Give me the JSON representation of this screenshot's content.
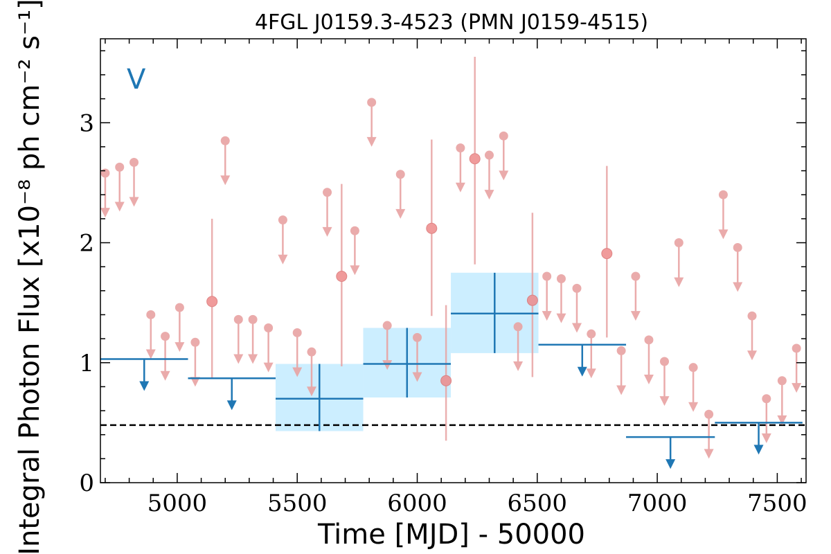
{
  "chart_data": {
    "type": "scatter",
    "title": "4FGL J0159.3-4523 (PMN J0159-4515)",
    "xlabel": "Time [MJD] - 50000",
    "ylabel": "Integral Photon Flux [x10⁻⁸ ph cm⁻² s⁻¹]",
    "band_label": "V",
    "xlim": [
      4680,
      7620
    ],
    "ylim": [
      0,
      3.7
    ],
    "x_ticks": [
      5000,
      5500,
      6000,
      6500,
      7000,
      7500
    ],
    "y_ticks": [
      0,
      1,
      2,
      3
    ],
    "reference_level": 0.48,
    "colors": {
      "short_bins": "#e8a3a3",
      "short_bins_marker": "#ee8a8a",
      "long_bins": "#1f77b4",
      "long_bins_fill": "#cceeff",
      "reference_line": "#000000"
    },
    "series": [
      {
        "kind": "short-bin-upper-limits",
        "x": [
          4700,
          4760,
          4820,
          4890,
          4950,
          5010,
          5075,
          5200,
          5255,
          5315,
          5380,
          5440,
          5500,
          5560,
          5625,
          5740,
          5810,
          5875,
          5930,
          6000,
          6180,
          6300,
          6360,
          6420,
          6540,
          6600,
          6665,
          6725,
          6850,
          6910,
          6965,
          7030,
          7090,
          7150,
          7215,
          7275,
          7335,
          7395,
          7455,
          7520,
          7580
        ],
        "y": [
          2.58,
          2.63,
          2.67,
          1.4,
          1.22,
          1.46,
          1.17,
          2.85,
          1.36,
          1.36,
          1.29,
          2.19,
          1.25,
          1.09,
          2.42,
          2.1,
          3.17,
          1.31,
          2.57,
          1.21,
          2.79,
          2.73,
          2.89,
          1.3,
          1.72,
          1.7,
          1.62,
          1.24,
          1.1,
          1.72,
          1.19,
          1.01,
          2.0,
          0.96,
          0.57,
          2.4,
          1.96,
          1.39,
          0.7,
          0.85,
          1.12
        ]
      },
      {
        "kind": "short-bin-detections",
        "x": [
          5145,
          5685,
          6060,
          6120,
          6240,
          6480,
          6790
        ],
        "y": [
          1.51,
          1.72,
          2.12,
          0.85,
          2.7,
          1.52,
          1.91
        ],
        "y_low": [
          0.87,
          0.97,
          1.39,
          0.35,
          1.82,
          0.88,
          1.21
        ],
        "y_high": [
          2.2,
          2.49,
          2.86,
          1.48,
          3.55,
          2.25,
          2.64
        ]
      },
      {
        "kind": "long-bin-detections",
        "x_start": [
          5410,
          5775,
          6140
        ],
        "x_end": [
          5775,
          6140,
          6505
        ],
        "y": [
          0.7,
          0.99,
          1.41
        ],
        "y_low": [
          0.43,
          0.71,
          1.08
        ],
        "y_high": [
          0.99,
          1.29,
          1.75
        ]
      },
      {
        "kind": "long-bin-upper-limits",
        "x_start": [
          4680,
          5045,
          6505,
          6870,
          7240
        ],
        "x_end": [
          5045,
          5410,
          6870,
          7240,
          7605
        ],
        "y": [
          1.03,
          0.87,
          1.15,
          0.38,
          0.5
        ]
      }
    ]
  }
}
